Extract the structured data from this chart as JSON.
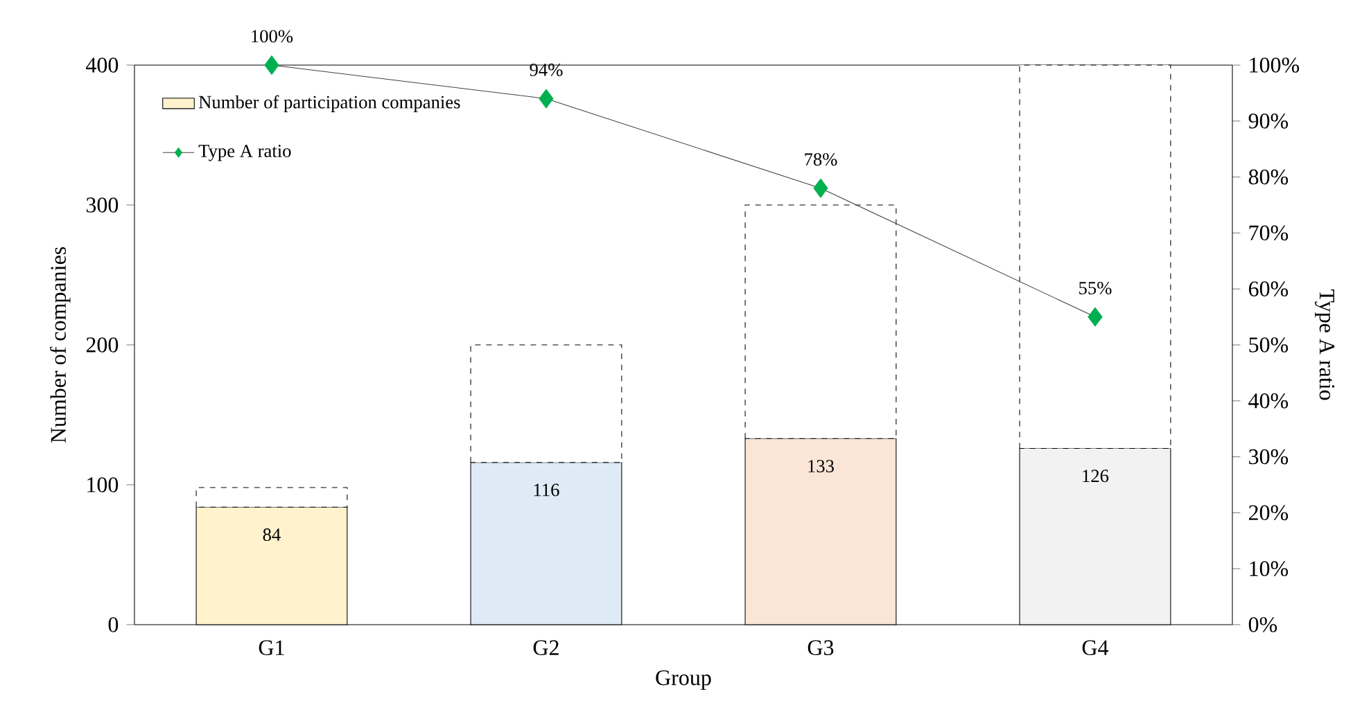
{
  "chart_data": {
    "type": "bar",
    "stacked": true,
    "xlabel": "Group",
    "ylabel": "Number of companies",
    "y2label": "Type A ratio",
    "categories": [
      "G1",
      "G2",
      "G3",
      "G4"
    ],
    "series": [
      {
        "name": "Number of participation companies",
        "colors": [
          "#fff2cc",
          "#deebf7",
          "#fbe5d6",
          "#f2f2f2"
        ],
        "values": [
          84,
          116,
          133,
          126
        ],
        "value_labels": [
          "84",
          "116",
          "133",
          "126"
        ]
      },
      {
        "color": "#ffffff",
        "line_style": "dashed",
        "values": [
          14,
          84,
          167,
          274
        ]
      },
      {
        "name": "Type A ratio",
        "type": "line",
        "axis": "y2",
        "color": "#00b050",
        "marker": "diamond",
        "values": [
          100,
          94,
          78,
          55
        ],
        "value_labels": [
          "100%",
          "94%",
          "78%",
          "55%"
        ]
      }
    ],
    "ylim": [
      0,
      400
    ],
    "yticks": [
      0,
      100,
      200,
      300,
      400
    ],
    "y2lim": [
      0,
      100
    ],
    "y2ticks": [
      {
        "value": 0,
        "label": "0%"
      },
      {
        "value": 10,
        "label": "10%"
      },
      {
        "value": 20,
        "label": "20%"
      },
      {
        "value": 30,
        "label": "30%"
      },
      {
        "value": 40,
        "label": "40%"
      },
      {
        "value": 50,
        "label": "50%"
      },
      {
        "value": 60,
        "label": "60%"
      },
      {
        "value": 70,
        "label": "70%"
      },
      {
        "value": 80,
        "label": "80%"
      },
      {
        "value": 90,
        "label": "90%"
      },
      {
        "value": 100,
        "label": "100%"
      }
    ],
    "legend": "top left",
    "grid": false
  }
}
